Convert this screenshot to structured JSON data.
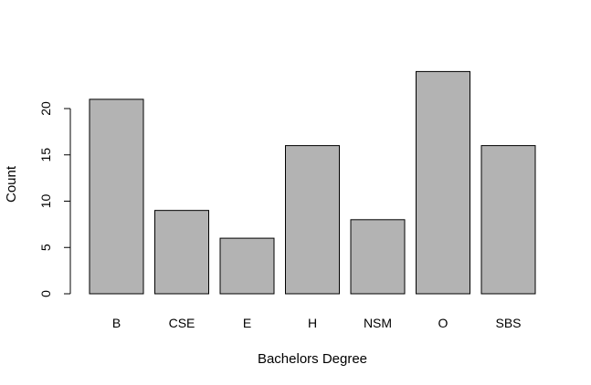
{
  "chart_data": {
    "type": "bar",
    "categories": [
      "B",
      "CSE",
      "E",
      "H",
      "NSM",
      "O",
      "SBS"
    ],
    "values": [
      21,
      9,
      6,
      16,
      8,
      24,
      16
    ],
    "xlabel": "Bachelors Degree",
    "ylabel": "Count",
    "ylim": [
      0,
      24
    ],
    "yticks": [
      0,
      5,
      10,
      15,
      20
    ],
    "ytick_labels": [
      "0",
      "5",
      "10",
      "15",
      "20"
    ],
    "grid": false,
    "legend": "none",
    "bar_color": "#b3b3b3"
  }
}
